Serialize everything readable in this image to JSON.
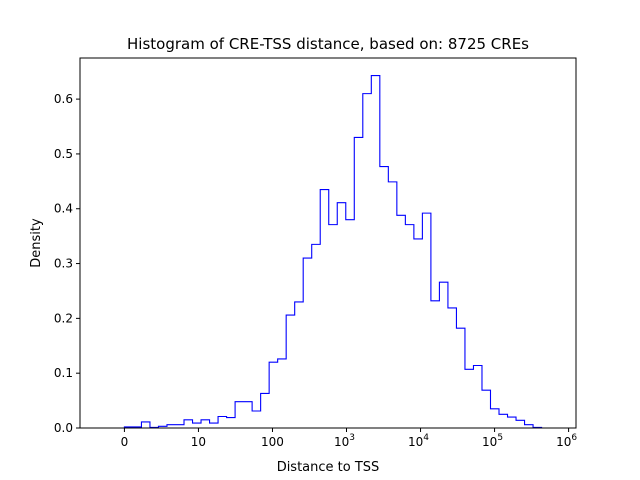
{
  "chart_data": {
    "type": "histogram",
    "title": "Histogram of CRE-TSS distance, based on: 8725 CREs",
    "xlabel": "Distance to TSS",
    "ylabel": "Density",
    "x_scale": "symlog",
    "xlim": [
      -0.6,
      6.1
    ],
    "ylim": [
      0,
      0.675
    ],
    "x_ticks": [
      {
        "label": "0",
        "base": "",
        "exp": ""
      },
      {
        "label": "10",
        "base": "",
        "exp": ""
      },
      {
        "label": "100",
        "base": "",
        "exp": ""
      },
      {
        "label": "",
        "base": "10",
        "exp": "3"
      },
      {
        "label": "",
        "base": "10",
        "exp": "4"
      },
      {
        "label": "",
        "base": "10",
        "exp": "5"
      },
      {
        "label": "",
        "base": "10",
        "exp": "6"
      }
    ],
    "x_tick_positions": [
      0,
      1,
      2,
      3,
      4,
      5,
      6
    ],
    "y_ticks": [
      "0.0",
      "0.1",
      "0.2",
      "0.3",
      "0.4",
      "0.5",
      "0.6"
    ],
    "y_tick_values": [
      0.0,
      0.1,
      0.2,
      0.3,
      0.4,
      0.5,
      0.6
    ],
    "bin_edges": [
      0,
      0.115,
      0.23,
      0.345,
      0.46,
      0.575,
      0.69,
      0.805,
      0.92,
      1.035,
      1.15,
      1.265,
      1.38,
      1.495,
      1.61,
      1.725,
      1.84,
      1.955,
      2.07,
      2.185,
      2.3,
      2.415,
      2.53,
      2.645,
      2.76,
      2.875,
      2.99,
      3.105,
      3.22,
      3.335,
      3.45,
      3.565,
      3.68,
      3.795,
      3.91,
      4.025,
      4.14,
      4.255,
      4.37,
      4.485,
      4.6,
      4.715,
      4.83,
      4.945,
      5.06,
      5.175,
      5.29,
      5.405,
      5.52,
      5.635
    ],
    "density": [
      0.002,
      0.002,
      0.011,
      0.001,
      0.003,
      0.006,
      0.006,
      0.015,
      0.009,
      0.015,
      0.009,
      0.021,
      0.019,
      0.048,
      0.048,
      0.031,
      0.063,
      0.12,
      0.126,
      0.206,
      0.23,
      0.31,
      0.335,
      0.435,
      0.371,
      0.411,
      0.38,
      0.53,
      0.61,
      0.643,
      0.477,
      0.449,
      0.388,
      0.371,
      0.345,
      0.392,
      0.232,
      0.266,
      0.219,
      0.182,
      0.107,
      0.114,
      0.069,
      0.035,
      0.025,
      0.02,
      0.014,
      0.006,
      0.001
    ],
    "line_color": "#0000ff",
    "grid": false,
    "legend": "none"
  }
}
